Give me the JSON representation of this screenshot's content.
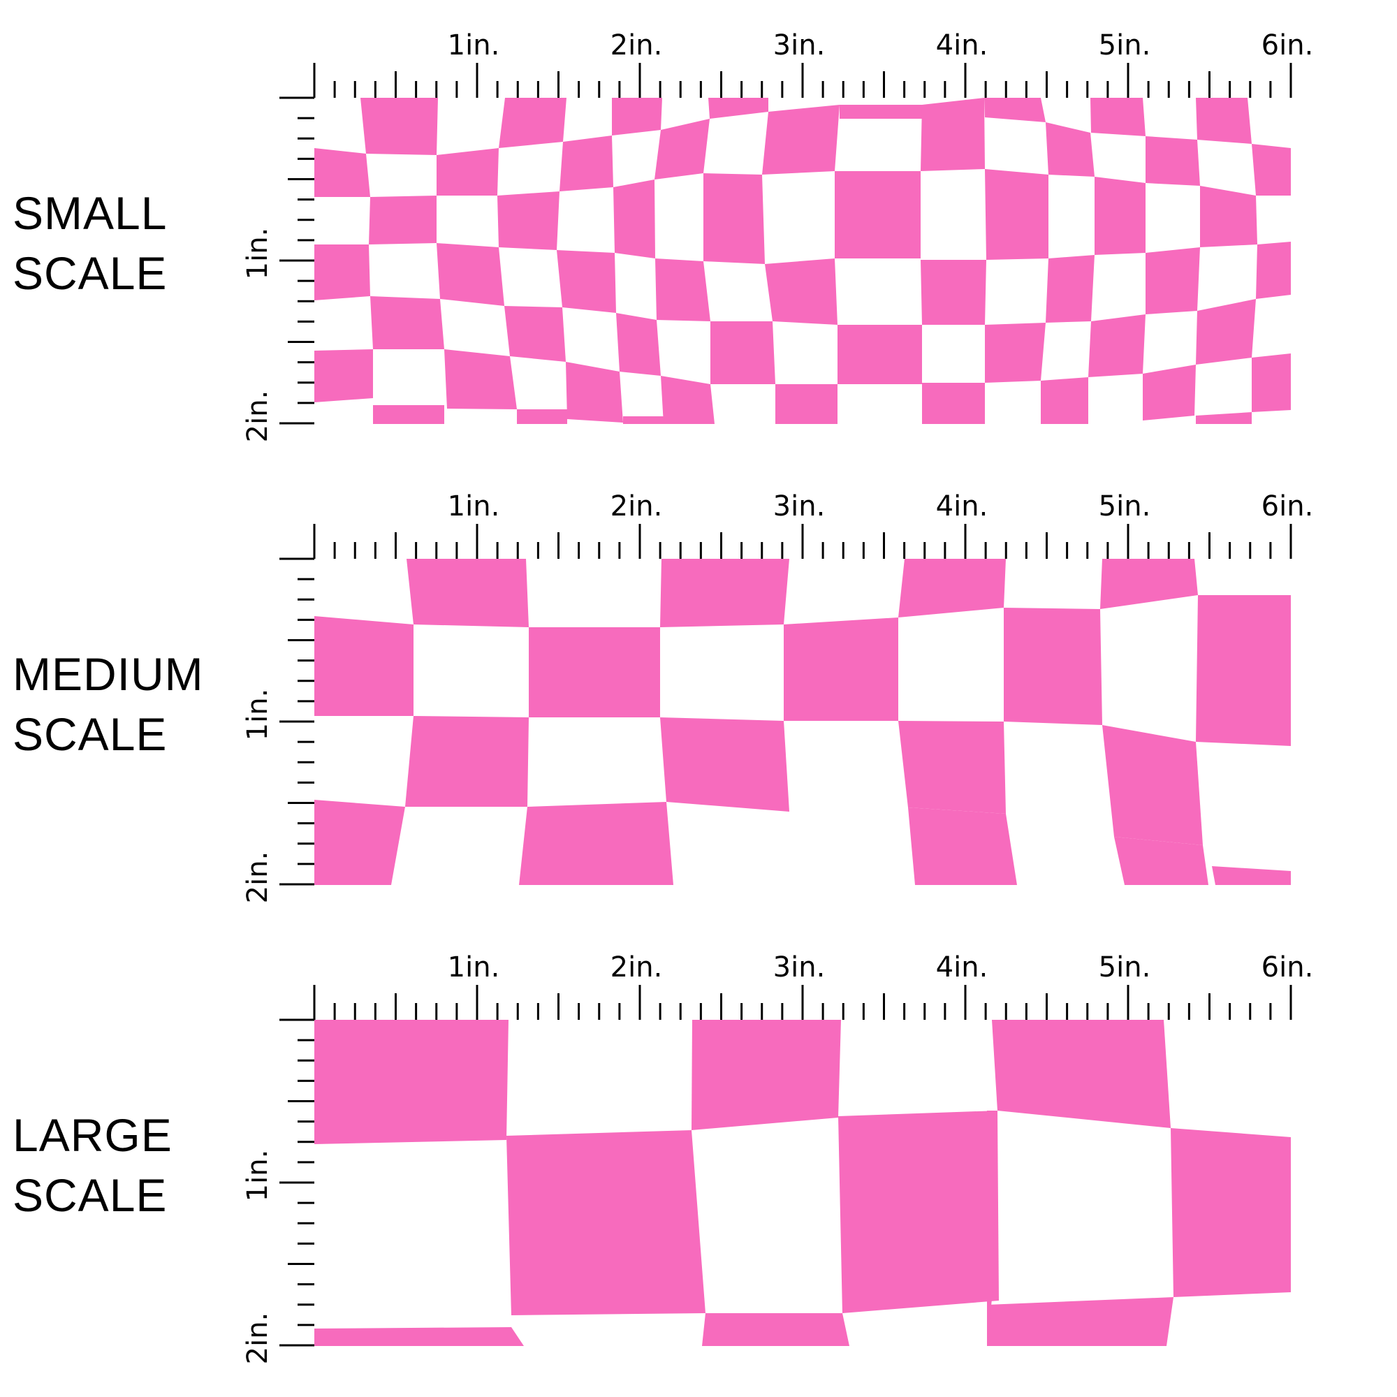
{
  "pattern_color": "#F76BBD",
  "ruler": {
    "top_labels": [
      "1in.",
      "2in.",
      "3in.",
      "4in.",
      "5in.",
      "6in."
    ],
    "side_labels": [
      "1in.",
      "2in."
    ],
    "width_in": 6,
    "height_in": 2,
    "subdivisions": 8
  },
  "panels": [
    {
      "label_line1": "SMALL",
      "label_line2": "SCALE",
      "scale": "small"
    },
    {
      "label_line1": "MEDIUM",
      "label_line2": "SCALE",
      "scale": "medium"
    },
    {
      "label_line1": "LARGE",
      "label_line2": "SCALE",
      "scale": "large"
    }
  ]
}
